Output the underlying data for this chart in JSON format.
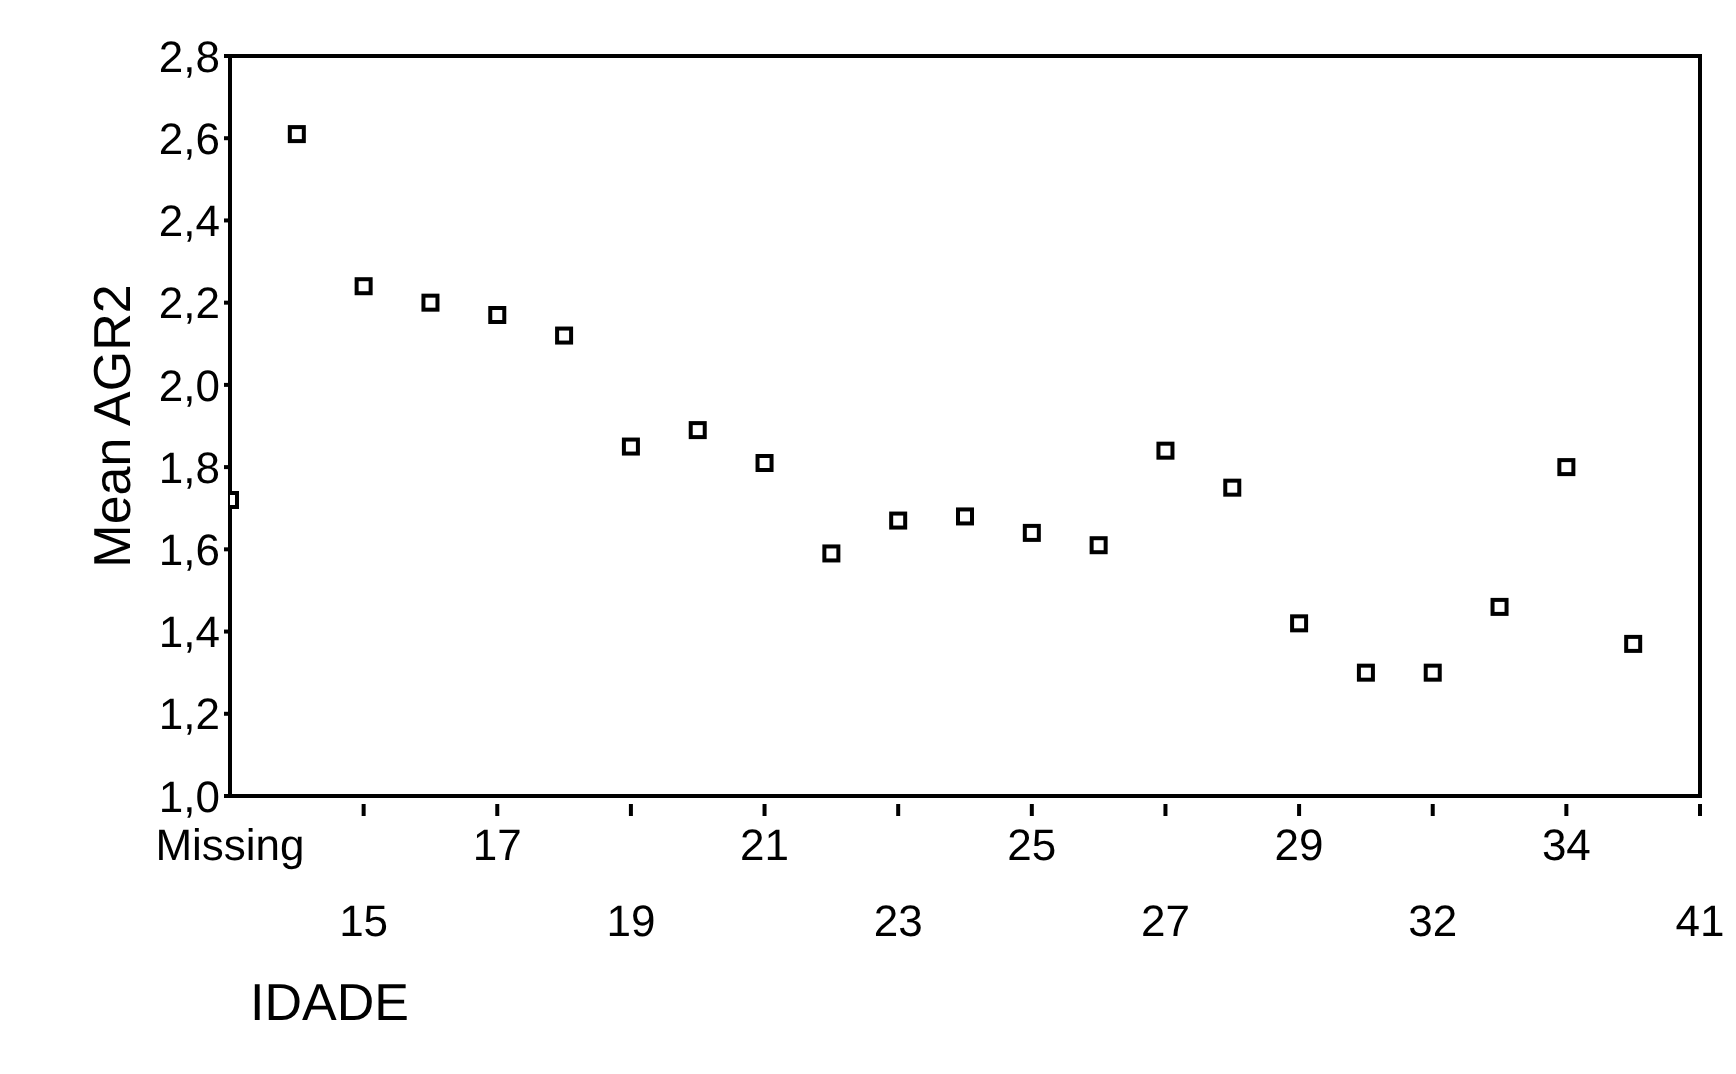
{
  "chart_data": {
    "type": "scatter",
    "xlabel": "IDADE",
    "ylabel": "Mean AGR2",
    "categories": [
      "Missing",
      null,
      "15",
      null,
      "17",
      null,
      "19",
      null,
      "21",
      null,
      "23",
      null,
      "25",
      null,
      "27",
      null,
      "29",
      null,
      "32",
      null,
      "34",
      null,
      "41"
    ],
    "series": [
      {
        "color": "#000000",
        "values": [
          1.72,
          2.61,
          2.24,
          2.2,
          2.17,
          2.12,
          1.85,
          1.89,
          1.81,
          1.59,
          1.67,
          1.68,
          1.64,
          1.61,
          1.84,
          1.75,
          1.42,
          1.3,
          1.3,
          1.46,
          1.8,
          1.37,
          null
        ]
      }
    ],
    "ylim": [
      1.0,
      2.8
    ],
    "yticks": [
      {
        "value": 1.0,
        "label": "1,0"
      },
      {
        "value": 1.2,
        "label": "1,2"
      },
      {
        "value": 1.4,
        "label": "1,4"
      },
      {
        "value": 1.6,
        "label": "1,6"
      },
      {
        "value": 1.8,
        "label": "1,8"
      },
      {
        "value": 2.0,
        "label": "2,0"
      },
      {
        "value": 2.2,
        "label": "2,2"
      },
      {
        "value": 2.4,
        "label": "2,4"
      },
      {
        "value": 2.6,
        "label": "2,6"
      },
      {
        "value": 2.8,
        "label": "2,8"
      }
    ],
    "marker": "square"
  }
}
